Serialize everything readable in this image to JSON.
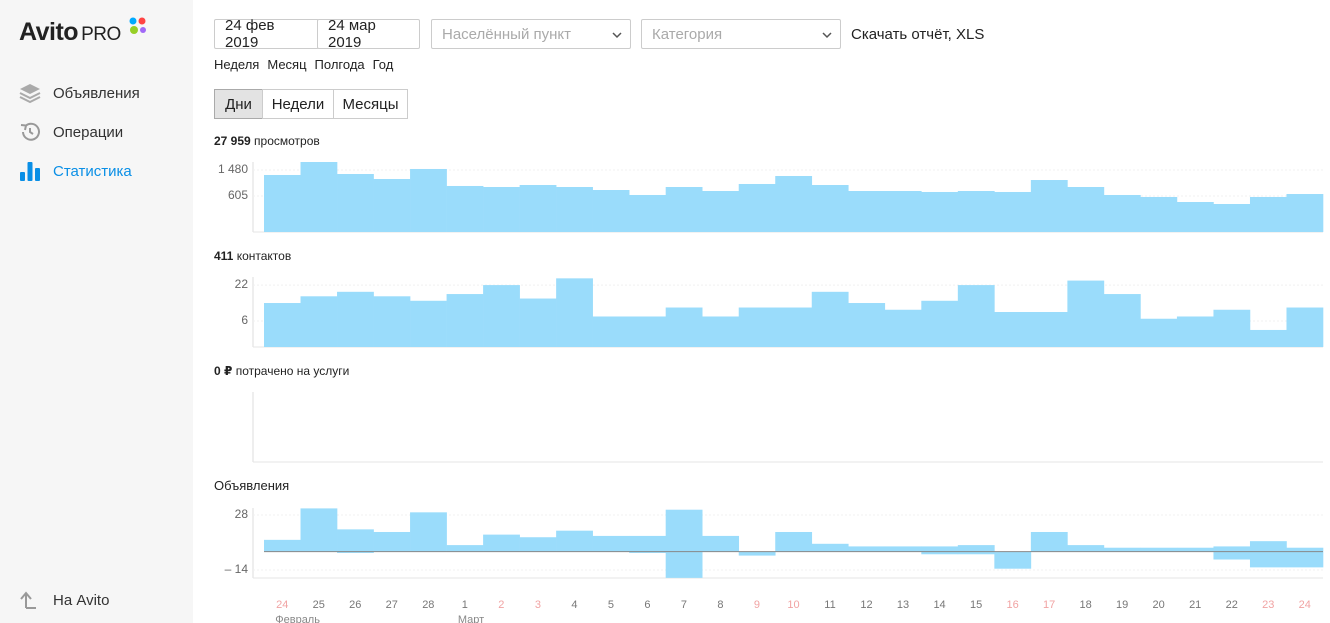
{
  "sidebar": {
    "logo": "Avito",
    "logo_suffix": "PRO",
    "nav": [
      {
        "label": "Объявления",
        "active": false
      },
      {
        "label": "Операции",
        "active": false
      },
      {
        "label": "Статистика",
        "active": true
      }
    ],
    "back": "На Avito"
  },
  "filters": {
    "date_from": "24 фев 2019",
    "date_to": "24 мар 2019",
    "location": "Населённый пункт",
    "category": "Категория",
    "download": "Скачать отчёт, XLS",
    "periods": [
      "Неделя",
      "Месяц",
      "Полгода",
      "Год"
    ],
    "granularity": [
      "Дни",
      "Недели",
      "Месяцы"
    ],
    "granularity_active": 0
  },
  "chart_data": [
    {
      "type": "bar",
      "total": "27 959",
      "title": "просмотров",
      "color": "#9adcfb",
      "baseline": "bottom",
      "ylim": [
        -606,
        1749
      ],
      "yticks": [
        {
          "value": 1480,
          "label": "1 480"
        },
        605
      ],
      "values": [
        1312,
        1749,
        1345,
        1177,
        1514,
        942,
        908,
        975,
        908,
        807,
        639,
        908,
        773,
        1009,
        1278,
        975,
        773,
        773,
        740,
        773,
        740,
        1143,
        908,
        639,
        572,
        403,
        336,
        572,
        672
      ]
    },
    {
      "type": "bar",
      "total": "411",
      "title": "контактов",
      "color": "#9adcfb",
      "baseline": "bottom",
      "ylim": [
        -5.6,
        25.6
      ],
      "yticks": [
        22,
        6
      ],
      "values": [
        14,
        17,
        19,
        17,
        15,
        18,
        22,
        16,
        25,
        8,
        8,
        12,
        8,
        12,
        12,
        19,
        14,
        11,
        15,
        22,
        10,
        10,
        24,
        18,
        7,
        8,
        11,
        2,
        12
      ]
    },
    {
      "type": "bar",
      "total": "0 ₽",
      "title": "потрачено на услуги"
    },
    {
      "type": "bar",
      "title": "Объявления",
      "baseline": "zero",
      "ylim": [
        -20.1,
        33.3
      ],
      "yticks": [
        28,
        {
          "value": -14,
          "label": "– 14"
        }
      ],
      "categories": [
        "24",
        "25",
        "26",
        "27",
        "28",
        "1",
        "2",
        "3",
        "4",
        "5",
        "6",
        "7",
        "8",
        "9",
        "10",
        "11",
        "12",
        "13",
        "14",
        "15",
        "16",
        "17",
        "18",
        "19",
        "20",
        "21",
        "22",
        "23",
        "24"
      ],
      "weekend": [
        true,
        false,
        false,
        false,
        false,
        false,
        true,
        true,
        false,
        false,
        false,
        false,
        false,
        true,
        true,
        false,
        false,
        false,
        false,
        false,
        true,
        true,
        false,
        false,
        false,
        false,
        false,
        true,
        true
      ],
      "weekend_color": "#f1a3a3",
      "months": [
        "Февраль",
        null,
        null,
        null,
        null,
        "Март",
        null,
        null,
        null,
        null,
        null,
        null,
        null,
        null,
        null,
        null,
        null,
        null,
        null,
        null,
        null,
        null,
        null,
        null,
        null,
        null,
        null,
        null,
        null
      ],
      "series": [
        {
          "color": "#9adcfb",
          "values": [
            9,
            33,
            17,
            15,
            30,
            5,
            13,
            11,
            16,
            12,
            12,
            32,
            12,
            0,
            15,
            6,
            4,
            4,
            4,
            5,
            0,
            15,
            5,
            3,
            3,
            3,
            4,
            8,
            3
          ]
        },
        {
          "color": "#9adcfb",
          "values": [
            0,
            0,
            -1,
            0,
            0,
            0,
            0,
            0,
            0,
            0,
            -1,
            -20,
            0,
            -3,
            0,
            0,
            0,
            0,
            -2,
            -2,
            -13,
            0,
            0,
            0,
            0,
            0,
            -6,
            -12,
            -12
          ]
        }
      ]
    }
  ]
}
